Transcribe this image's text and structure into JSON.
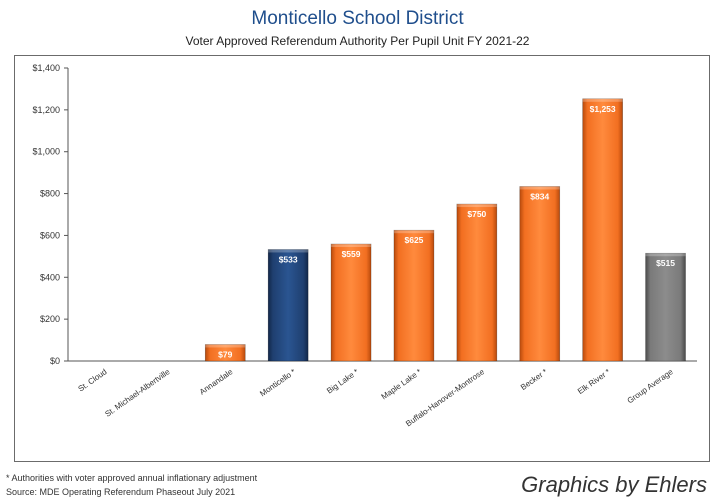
{
  "title": "Monticello School District",
  "subtitle": "Voter Approved Referendum Authority Per Pupil Unit FY 2021-22",
  "footnote": "* Authorities with voter approved annual inflationary adjustment",
  "source": "Source: MDE Operating Referendum Phaseout July 2021",
  "credit": "Graphics by Ehlers",
  "colors": {
    "orange": "#f26f21",
    "navy": "#1f3f70",
    "gray": "#7a7a7a"
  },
  "chart_data": {
    "type": "bar",
    "title": "Voter Approved Referendum Authority Per Pupil Unit FY 2021-22",
    "categories": [
      "St. Cloud",
      "St. Michael-Albertville",
      "Annandale",
      "Monticello *",
      "Big Lake *",
      "Maple Lake *",
      "Buffalo-Hanover-Montrose",
      "Becker *",
      "Elk River *",
      "Group Average"
    ],
    "values": [
      0,
      0,
      79,
      533,
      559,
      625,
      750,
      834,
      1253,
      515
    ],
    "value_labels": [
      "",
      "",
      "$79",
      "$533",
      "$559",
      "$625",
      "$750",
      "$834",
      "$1,253",
      "$515"
    ],
    "bar_colors": [
      "orange",
      "orange",
      "orange",
      "navy",
      "orange",
      "orange",
      "orange",
      "orange",
      "orange",
      "gray"
    ],
    "yticks": [
      "$0",
      "$200",
      "$400",
      "$600",
      "$800",
      "$1,000",
      "$1,200",
      "$1,400"
    ],
    "ylim": [
      0,
      1400
    ],
    "grid": false,
    "legend": "none"
  }
}
